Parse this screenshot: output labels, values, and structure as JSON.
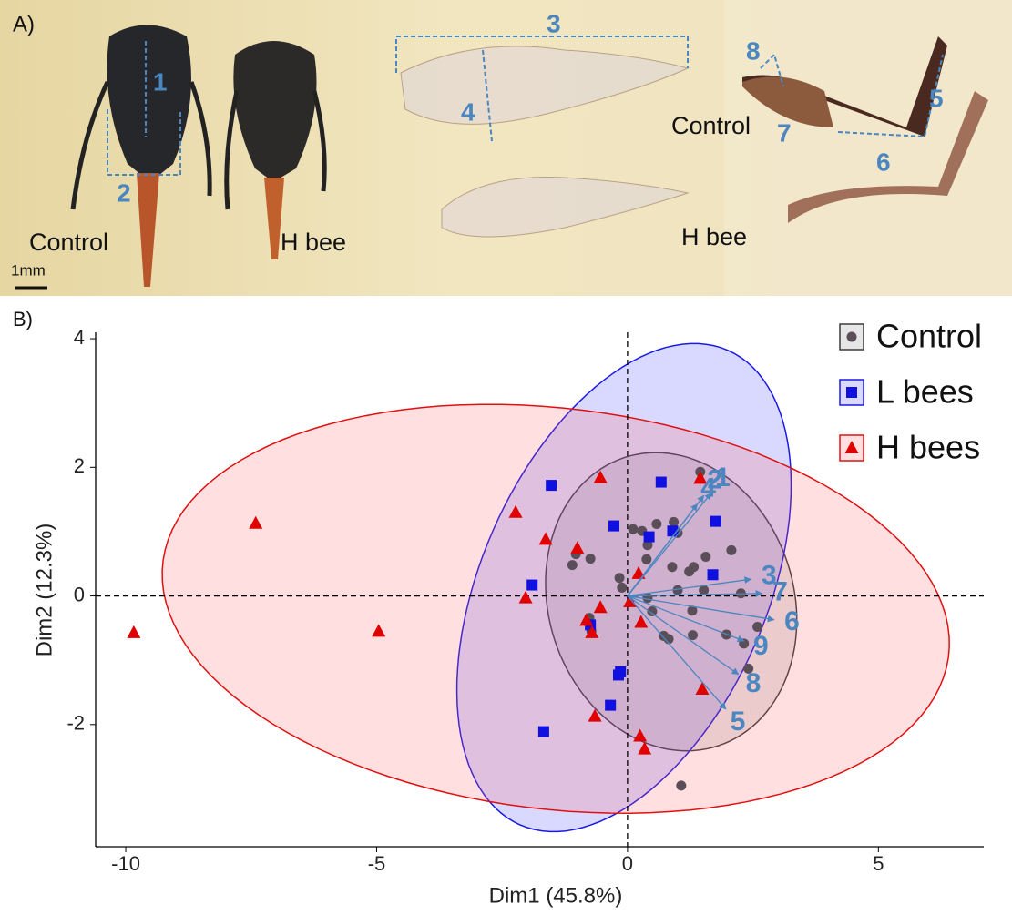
{
  "panel_a": {
    "panel_label": "A)",
    "labels": [
      "1",
      "2",
      "3",
      "4",
      "5",
      "6",
      "7",
      "8"
    ],
    "captions": [
      "Control",
      "H bee",
      "Control",
      "H bee"
    ],
    "scale_bar": "1mm"
  },
  "chart_data": {
    "type": "scatter",
    "panel_label": "B)",
    "x_label": "Dim1 (45.8%)",
    "y_label": "Dim2 (12.3%)",
    "xlim": [
      -10.6,
      7.1
    ],
    "ylim": [
      -3.9,
      4.1
    ],
    "xticks": [
      -10,
      -5,
      0,
      5
    ],
    "yticks": [
      -2,
      0,
      2,
      4
    ],
    "hline": 0,
    "vline": 0,
    "legend": "top-right",
    "series": [
      {
        "name": "Control",
        "color": "#5a4e58",
        "marker": "circle",
        "x": [
          1.45,
          0.92,
          0.11,
          0.29,
          0.58,
          1.0,
          0.4,
          -1.03,
          -0.74,
          -1.1,
          0.89,
          1.32,
          1.56,
          2.07,
          1.23,
          -0.16,
          0.38,
          -0.11,
          0.4,
          1.0,
          1.52,
          0.49,
          1.29,
          2.26,
          2.59,
          -0.76,
          -0.72,
          0.82,
          0.72,
          1.3,
          1.97,
          2.32,
          2.41,
          1.07
        ],
        "y": [
          1.93,
          1.15,
          1.04,
          1.01,
          1.12,
          0.98,
          0.79,
          0.65,
          0.58,
          0.48,
          0.45,
          0.45,
          0.61,
          0.71,
          0.38,
          0.28,
          0.57,
          0.13,
          -0.03,
          0.09,
          0.09,
          -0.24,
          -0.23,
          0.04,
          -0.48,
          -0.34,
          -0.55,
          -0.67,
          -0.62,
          -0.61,
          -0.6,
          -0.74,
          -1.13,
          -2.95
        ],
        "ellipse": {
          "center": [
            0.87,
            -0.09
          ],
          "a": [
            0.94,
            -2.24
          ],
          "b": [
            2.32,
            0.6
          ],
          "fill": "#808080",
          "stroke": "#3c3c3c"
        }
      },
      {
        "name": "L bees",
        "color": "#1010e0",
        "marker": "square",
        "x": [
          -1.52,
          0.67,
          -0.27,
          0.43,
          0.9,
          1.76,
          1.7,
          -1.9,
          -0.74,
          -0.14,
          -0.18,
          -0.34,
          -1.67
        ],
        "y": [
          1.72,
          1.77,
          1.09,
          0.92,
          1.01,
          1.16,
          0.33,
          0.17,
          -0.45,
          -1.18,
          -1.23,
          -1.7,
          -2.11
        ],
        "ellipse": {
          "center": [
            -0.07,
            0.13
          ],
          "a": [
            2.07,
            3.69
          ],
          "b": [
            2.61,
            -0.89
          ],
          "fill": "#4040ff",
          "stroke": "#1a1ae6"
        }
      },
      {
        "name": "H bees",
        "color": "#e00000",
        "marker": "triangle",
        "x": [
          -9.84,
          -7.41,
          -4.96,
          -2.23,
          -0.54,
          -1.63,
          -2.03,
          -1.0,
          0.22,
          -0.54,
          -0.82,
          -0.71,
          0.05,
          0.27,
          1.45,
          1.49,
          -0.65,
          0.25,
          0.34
        ],
        "y": [
          -0.57,
          1.13,
          -0.55,
          1.3,
          1.84,
          0.88,
          -0.03,
          0.74,
          0.35,
          -0.18,
          -0.38,
          -0.57,
          -0.09,
          -0.41,
          1.83,
          -1.45,
          -1.87,
          -2.18,
          -2.38
        ],
        "ellipse": {
          "center": [
            -1.43,
            -0.2
          ],
          "a": [
            7.84,
            -0.43
          ],
          "b": [
            -0.27,
            3.15
          ],
          "fill": "#ff6060",
          "stroke": "#e01010"
        }
      }
    ],
    "arrows": {
      "color": "#4a86c0",
      "labels": [
        "1",
        "2",
        "4",
        "3",
        "7",
        "6",
        "9",
        "8",
        "5"
      ],
      "x": [
        1.67,
        1.52,
        1.39,
        2.46,
        2.68,
        2.92,
        2.32,
        2.21,
        1.96
      ],
      "y": [
        1.6,
        1.56,
        1.43,
        0.26,
        0.04,
        -0.37,
        -0.7,
        -1.22,
        -1.76
      ]
    }
  }
}
